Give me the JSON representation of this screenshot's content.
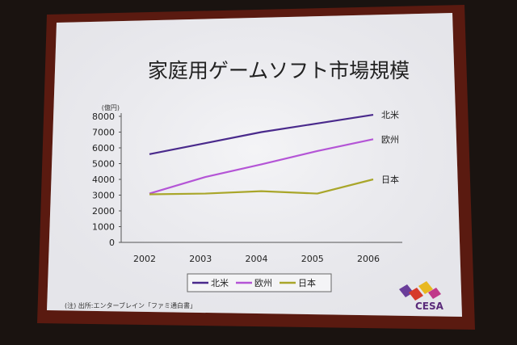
{
  "slide": {
    "title": "家庭用ゲームソフト市場規模",
    "source_note": "(注) 出所:エンターブレイン「ファミ通白書」",
    "logo_text": "CESA"
  },
  "colors": {
    "north_america": "#4a2a8c",
    "europe": "#b455d6",
    "japan": "#a9a62a",
    "slide_bg": "#f1f1f3",
    "frame": "#6b1a10"
  },
  "chart_data": {
    "type": "line",
    "title": "家庭用ゲームソフト市場規模",
    "ylabel": "(億円)",
    "xlabel": "",
    "categories": [
      "2002",
      "2003",
      "2004",
      "2005",
      "2006"
    ],
    "ylim": [
      0,
      8000
    ],
    "yticks": [
      "8000",
      "7000",
      "6000",
      "5000",
      "4000",
      "3000",
      "2000",
      "1000",
      "0"
    ],
    "grid": false,
    "legend_position": "bottom",
    "series": [
      {
        "name": "北米",
        "values": [
          5600,
          6300,
          7000,
          7550,
          8100
        ]
      },
      {
        "name": "欧州",
        "values": [
          3100,
          4150,
          4950,
          5800,
          6550
        ]
      },
      {
        "name": "日本",
        "values": [
          3050,
          3100,
          3250,
          3100,
          4000
        ]
      }
    ]
  }
}
